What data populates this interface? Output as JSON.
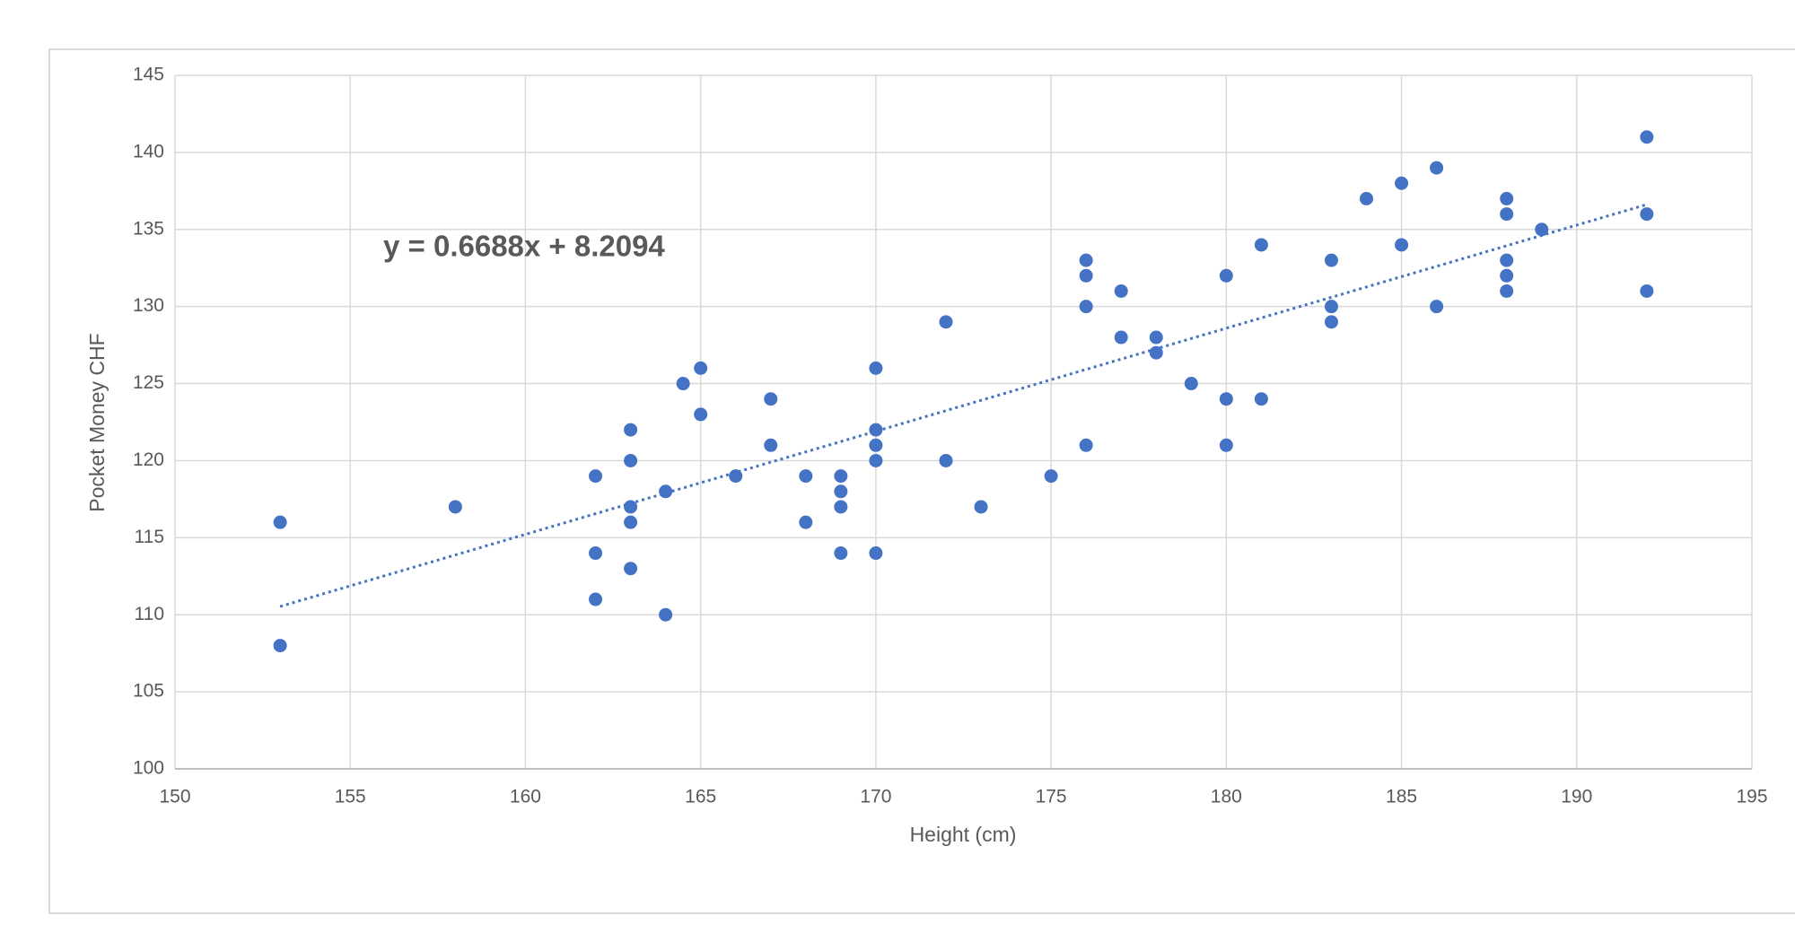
{
  "chart_data": {
    "type": "scatter",
    "x_label": "Height (cm)",
    "y_label": "Pocket Money CHF",
    "color": "#4472c4",
    "grid": true,
    "xlim": [
      150,
      195
    ],
    "xticks": [
      150,
      155,
      160,
      165,
      170,
      175,
      180,
      185,
      190,
      195
    ],
    "ylim": [
      100,
      145
    ],
    "yticks": [
      100,
      105,
      110,
      115,
      120,
      125,
      130,
      135,
      140,
      145
    ],
    "x": [
      153,
      153,
      158,
      162,
      162,
      162,
      163,
      163,
      163,
      163,
      163,
      164,
      164,
      164.5,
      165,
      165,
      166,
      167,
      167,
      168,
      168,
      169,
      169,
      169,
      169,
      170,
      170,
      170,
      170,
      170,
      172,
      172,
      173,
      175,
      176,
      176,
      176,
      176,
      177,
      177,
      178,
      178,
      179,
      180,
      180,
      180,
      181,
      181,
      183,
      183,
      183,
      184,
      185,
      185,
      186,
      186,
      188,
      188,
      188,
      188,
      188,
      189,
      192,
      192,
      192
    ],
    "values": [
      116,
      108,
      117,
      119,
      114,
      111,
      122,
      120,
      117,
      116,
      113,
      118,
      110,
      125,
      126,
      123,
      119,
      124,
      121,
      119,
      116,
      119,
      118,
      117,
      114,
      126,
      122,
      121,
      120,
      114,
      129,
      120,
      117,
      119,
      133,
      132,
      130,
      121,
      131,
      128,
      128,
      127,
      125,
      132,
      124,
      121,
      134,
      124,
      133,
      130,
      129,
      137,
      138,
      134,
      139,
      130,
      137,
      136,
      133,
      132,
      131,
      135,
      141,
      136,
      131
    ],
    "trendline": {
      "slope": 0.6688,
      "intercept": 8.2094,
      "label": "y = 0.6688x + 8.2094"
    }
  }
}
